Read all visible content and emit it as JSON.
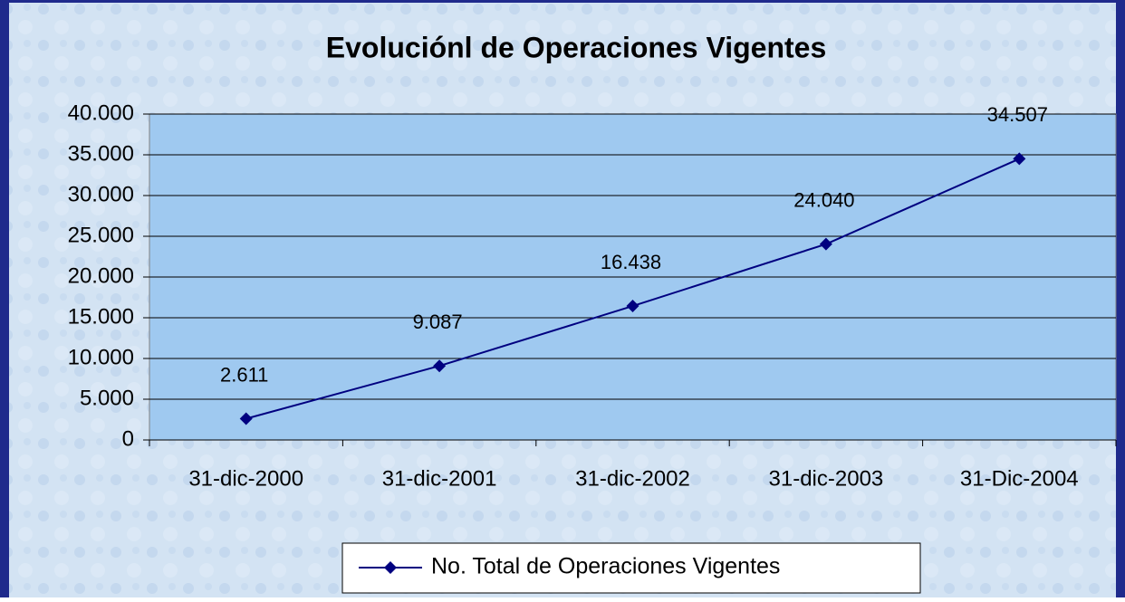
{
  "chart_data": {
    "type": "line",
    "title": "Evoluciónl de Operaciones Vigentes",
    "categories": [
      "31-dic-2000",
      "31-dic-2001",
      "31-dic-2002",
      "31-dic-2003",
      "31-Dic-2004"
    ],
    "series": [
      {
        "name": "No. Total de Operaciones Vigentes",
        "color": "#000080",
        "values": [
          2611,
          9087,
          16438,
          24040,
          34507
        ],
        "value_labels": [
          "2.611",
          "9.087",
          "16.438",
          "24.040",
          "34.507"
        ]
      }
    ],
    "ylim": [
      0,
      40000
    ],
    "yticks": [
      {
        "value": 0,
        "label": "0"
      },
      {
        "value": 5000,
        "label": "5.000"
      },
      {
        "value": 10000,
        "label": "10.000"
      },
      {
        "value": 15000,
        "label": "15.000"
      },
      {
        "value": 20000,
        "label": "20.000"
      },
      {
        "value": 25000,
        "label": "25.000"
      },
      {
        "value": 30000,
        "label": "30.000"
      },
      {
        "value": 35000,
        "label": "35.000"
      },
      {
        "value": 40000,
        "label": "40.000"
      }
    ],
    "grid": true,
    "legend": "bottom"
  }
}
